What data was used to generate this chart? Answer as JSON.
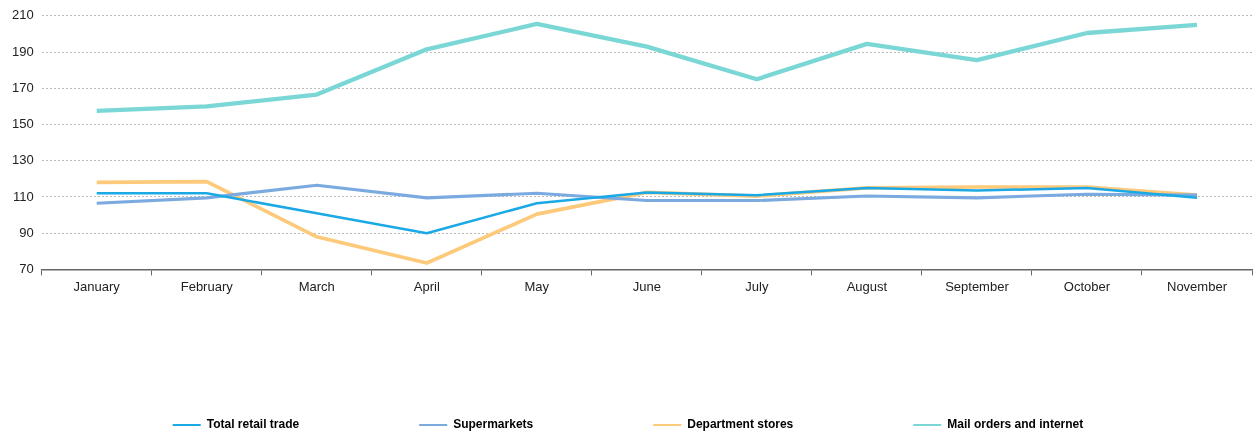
{
  "chart_data": {
    "type": "line",
    "categories": [
      "January",
      "February",
      "March",
      "April",
      "May",
      "June",
      "July",
      "August",
      "September",
      "October",
      "November"
    ],
    "series": [
      {
        "name": "Total retail trade",
        "color": "#1ba9e6",
        "values": [
          112,
          112,
          101,
          90,
          106.5,
          112.5,
          111,
          115,
          113.5,
          115,
          109.5
        ]
      },
      {
        "name": "Supermarkets",
        "color": "#7aaadf",
        "values": [
          106.5,
          109.5,
          116.5,
          109.5,
          112,
          108,
          108,
          110.5,
          109.5,
          111.5,
          111
        ]
      },
      {
        "name": "Department stores",
        "color": "#fdc97a",
        "values": [
          118,
          118.5,
          88,
          73.5,
          100.5,
          112.5,
          110.5,
          115,
          115.5,
          115.5,
          111
        ]
      },
      {
        "name": "Mail orders and internet",
        "color": "#7ad7d6",
        "values": [
          157.5,
          160,
          166.5,
          191.5,
          205.5,
          193,
          175,
          194.5,
          185.5,
          200.5,
          205
        ]
      }
    ],
    "ylim": [
      70,
      210
    ],
    "yticks": [
      70,
      90,
      110,
      130,
      150,
      170,
      190,
      210
    ],
    "grid": "y",
    "legend": "bottom",
    "marker": "none",
    "line_style": "solid"
  }
}
